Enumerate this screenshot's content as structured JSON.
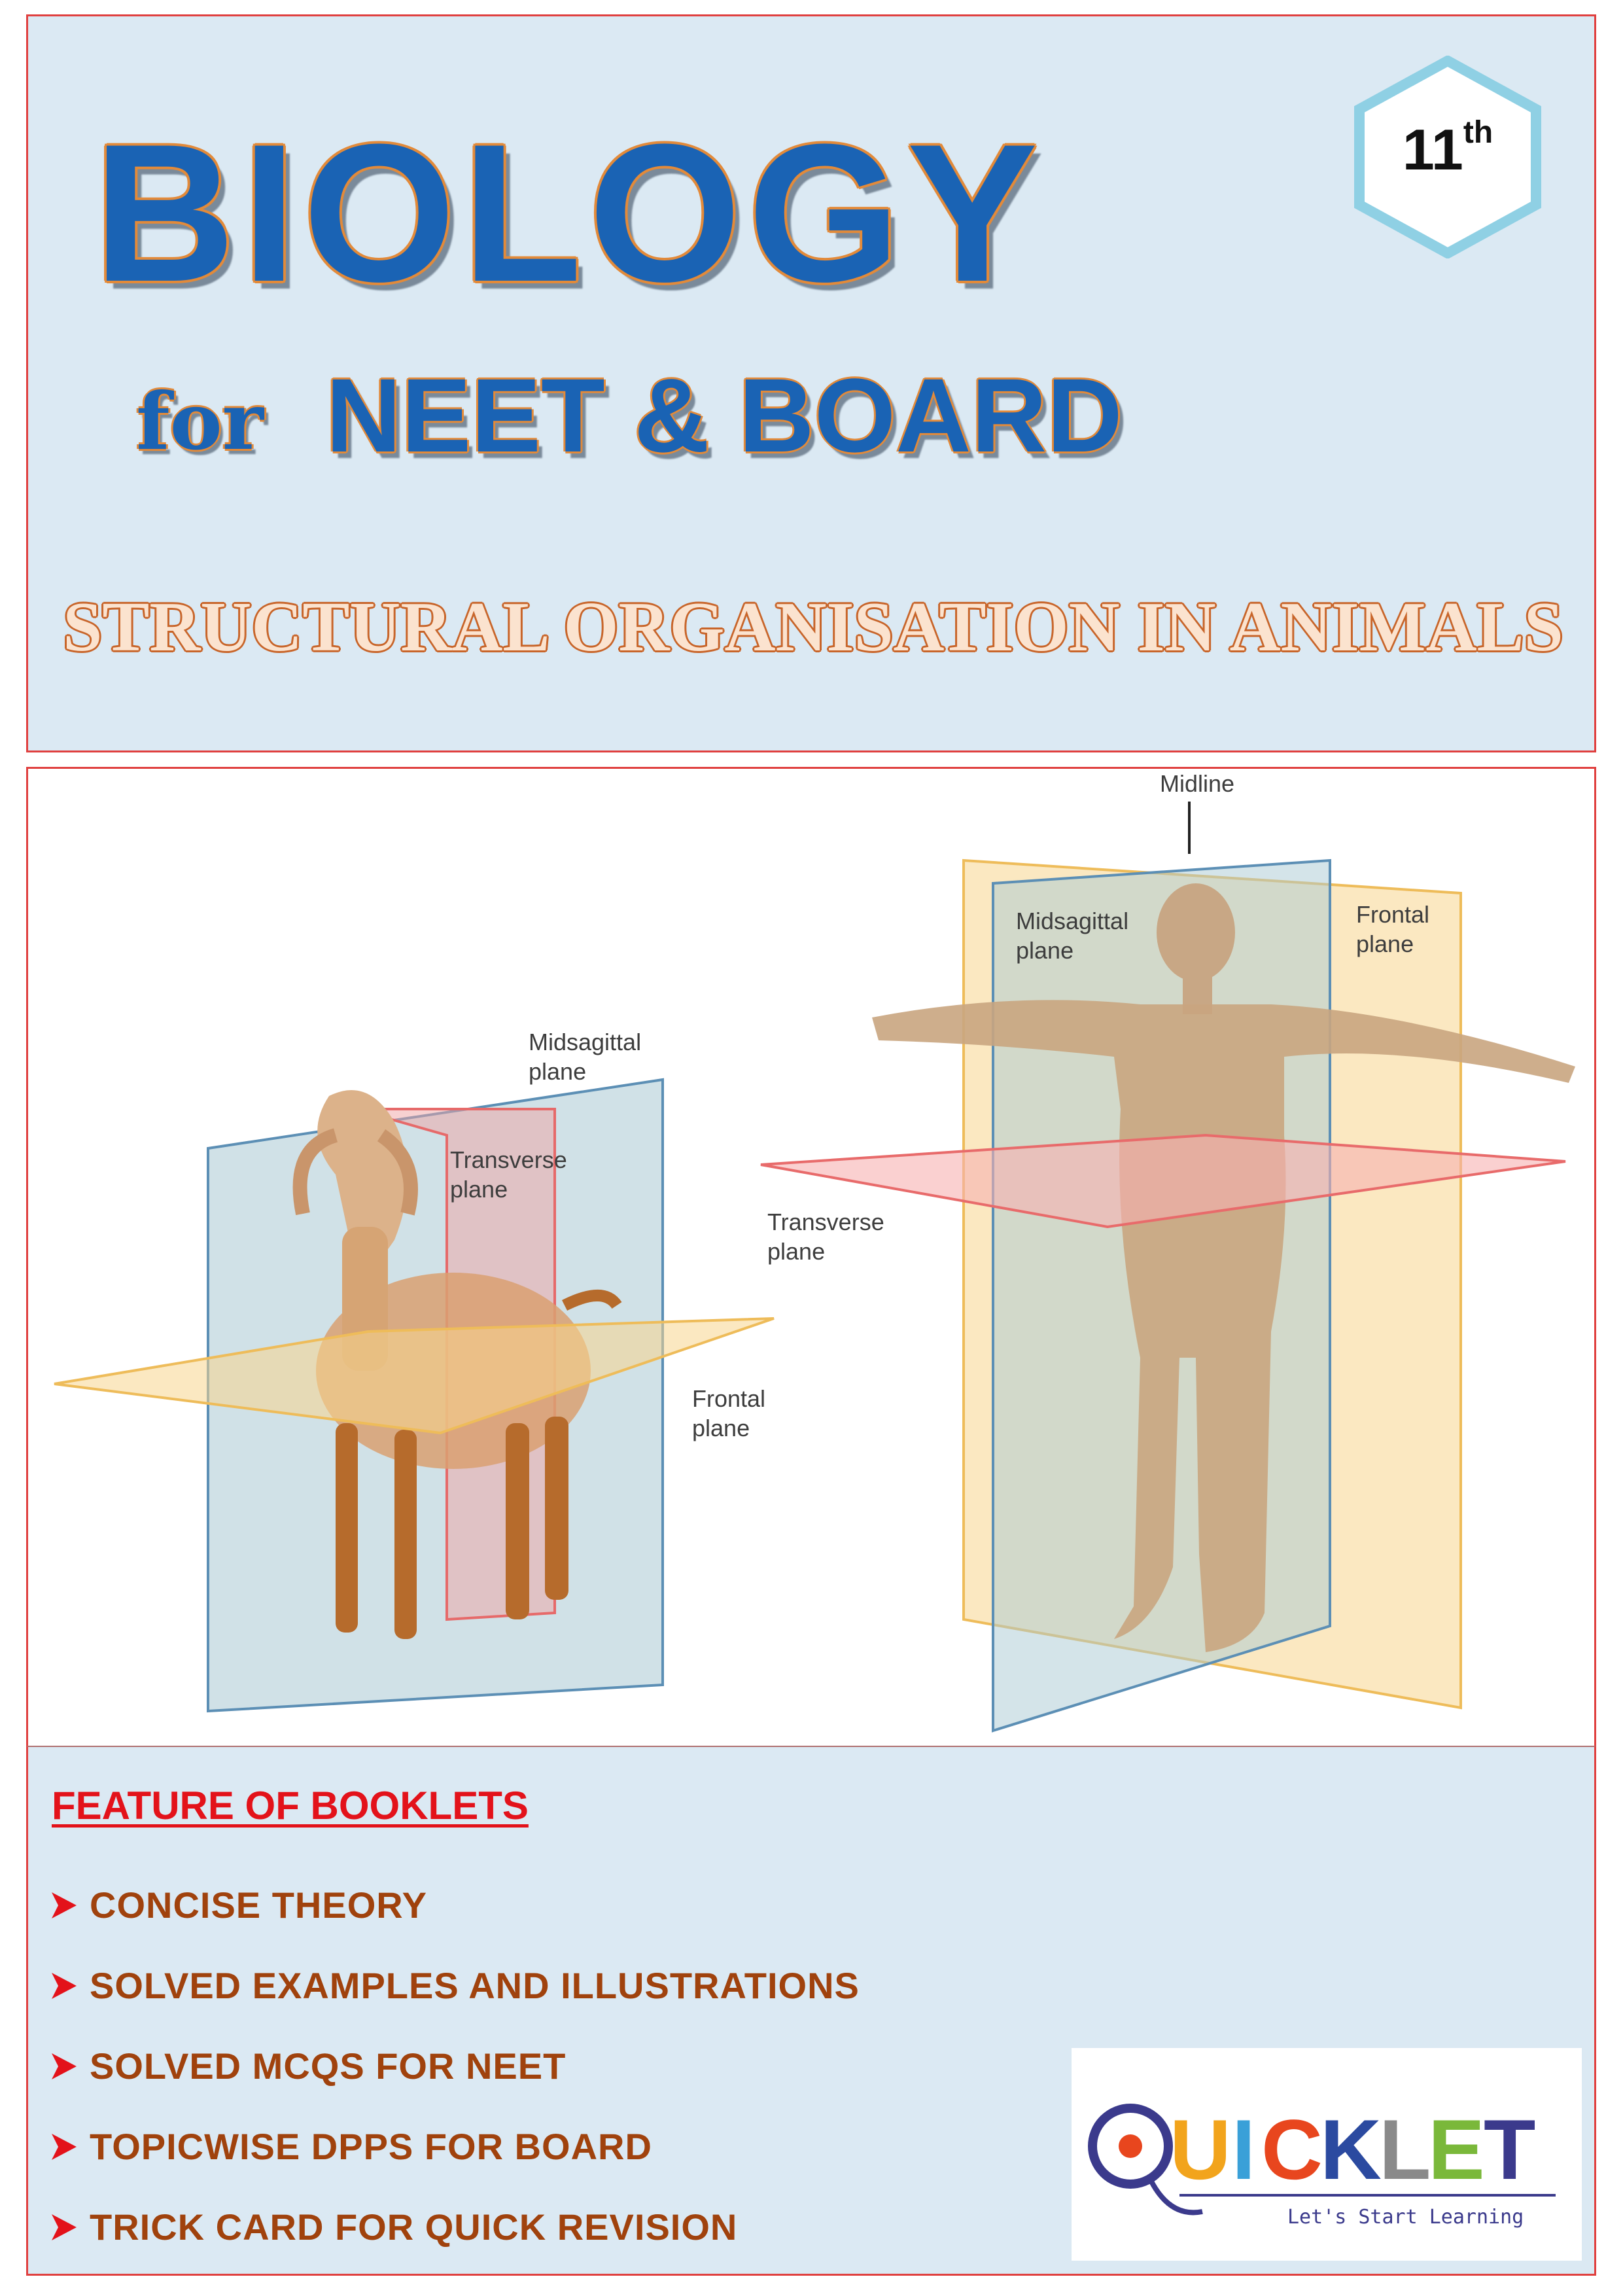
{
  "header": {
    "title": "BIOLOGY",
    "for_word": "for",
    "subtitle_exam": "NEET & BOARD",
    "chapter": "STRUCTURAL ORGANISATION IN ANIMALS",
    "grade_number": "11",
    "grade_suffix": "th"
  },
  "figure": {
    "goat_labels": {
      "midsagittal": [
        "Midsagittal",
        "plane"
      ],
      "transverse": [
        "Transverse",
        "plane"
      ],
      "frontal": [
        "Frontal",
        "plane"
      ]
    },
    "human_labels": {
      "midline": "Midline",
      "midsagittal": [
        "Midsagittal",
        "plane"
      ],
      "frontal": [
        "Frontal",
        "plane"
      ],
      "transverse": [
        "Transverse",
        "plane"
      ]
    }
  },
  "features": {
    "heading": "FEATURE OF BOOKLETS",
    "items": [
      "CONCISE THEORY",
      "SOLVED EXAMPLES AND ILLUSTRATIONS",
      "SOLVED MCQS FOR NEET",
      "TOPICWISE DPPS FOR BOARD",
      "TRICK CARD FOR QUICK REVISION"
    ]
  },
  "logo": {
    "letters": [
      "Q",
      "U",
      "I",
      "C",
      "K",
      "L",
      "E",
      "T"
    ],
    "tagline": "Let's Start Learning"
  },
  "colors": {
    "title_blue": "#1a63b4",
    "title_outline": "#e28a3a",
    "panel_bg": "#dbe9f3",
    "border_red": "#e0403f",
    "feature_heading": "#e3121a",
    "feature_text": "#a0420d"
  }
}
